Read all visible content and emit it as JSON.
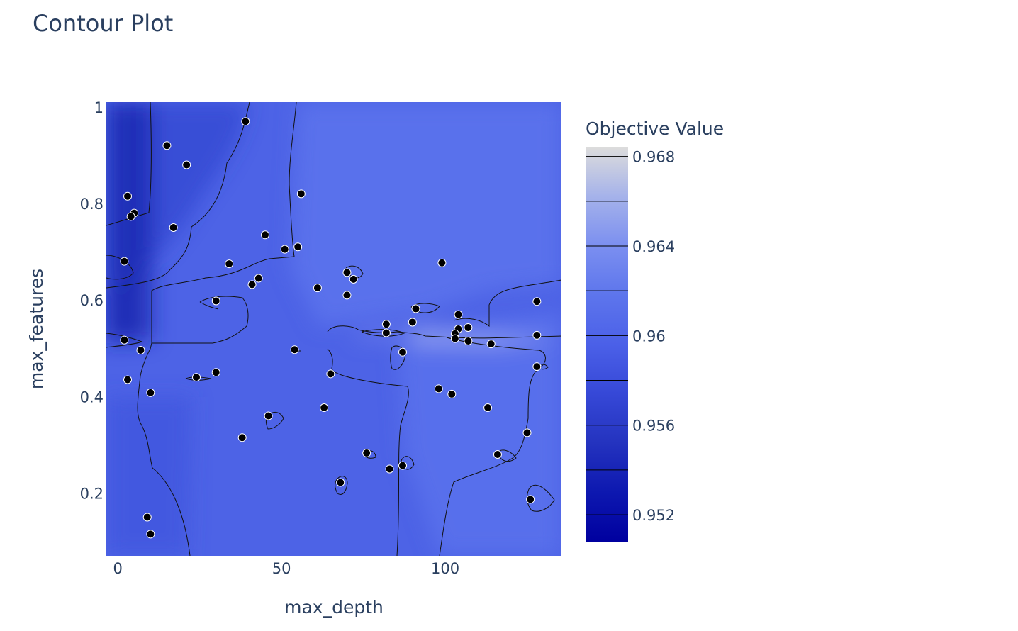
{
  "chart_data": {
    "type": "contour",
    "title": "Contour Plot",
    "xlabel": "max_depth",
    "ylabel": "max_features",
    "xlim": [
      -3.5,
      135.5
    ],
    "ylim": [
      0.07,
      1.01
    ],
    "x_ticks": [
      0,
      50,
      100
    ],
    "y_ticks": [
      0.2,
      0.4,
      0.6,
      0.8,
      1
    ],
    "colorbar": {
      "title": "Objective Value",
      "range": [
        0.9508,
        0.9684
      ],
      "ticks": [
        0.952,
        0.956,
        0.96,
        0.964,
        0.968
      ],
      "tick_labels": [
        "0.952",
        "0.956",
        "0.96",
        "0.964",
        "0.968"
      ],
      "contour_levels": [
        0.952,
        0.954,
        0.956,
        0.958,
        0.96,
        0.962,
        0.964,
        0.966,
        0.968
      ],
      "colorscale": [
        "#00009f",
        "#0d18b0",
        "#2433bf",
        "#3648d7",
        "#4b60e8",
        "#5d75ec",
        "#7b8ff0",
        "#a5b2ea",
        "#dcdcdc"
      ]
    },
    "points": [
      {
        "x": 39,
        "y": 0.97
      },
      {
        "x": 15,
        "y": 0.92
      },
      {
        "x": 21,
        "y": 0.88
      },
      {
        "x": 3,
        "y": 0.815
      },
      {
        "x": 56,
        "y": 0.82
      },
      {
        "x": 5,
        "y": 0.78
      },
      {
        "x": 4,
        "y": 0.773
      },
      {
        "x": 17,
        "y": 0.75
      },
      {
        "x": 45,
        "y": 0.735
      },
      {
        "x": 51,
        "y": 0.705
      },
      {
        "x": 55,
        "y": 0.71
      },
      {
        "x": 2,
        "y": 0.68
      },
      {
        "x": 34,
        "y": 0.675
      },
      {
        "x": 99,
        "y": 0.677
      },
      {
        "x": 70,
        "y": 0.657
      },
      {
        "x": 72,
        "y": 0.643
      },
      {
        "x": 43,
        "y": 0.645
      },
      {
        "x": 41,
        "y": 0.632
      },
      {
        "x": 61,
        "y": 0.625
      },
      {
        "x": 70,
        "y": 0.61
      },
      {
        "x": 30,
        "y": 0.598
      },
      {
        "x": 128,
        "y": 0.597
      },
      {
        "x": 91,
        "y": 0.582
      },
      {
        "x": 104,
        "y": 0.57
      },
      {
        "x": 90,
        "y": 0.554
      },
      {
        "x": 82,
        "y": 0.55
      },
      {
        "x": 107,
        "y": 0.543
      },
      {
        "x": 104,
        "y": 0.54
      },
      {
        "x": 82,
        "y": 0.532
      },
      {
        "x": 103,
        "y": 0.53
      },
      {
        "x": 128,
        "y": 0.527
      },
      {
        "x": 103,
        "y": 0.52
      },
      {
        "x": 2,
        "y": 0.517
      },
      {
        "x": 107,
        "y": 0.515
      },
      {
        "x": 114,
        "y": 0.509
      },
      {
        "x": 7,
        "y": 0.496
      },
      {
        "x": 54,
        "y": 0.497
      },
      {
        "x": 87,
        "y": 0.492
      },
      {
        "x": 128,
        "y": 0.462
      },
      {
        "x": 65,
        "y": 0.447
      },
      {
        "x": 30,
        "y": 0.45
      },
      {
        "x": 24,
        "y": 0.44
      },
      {
        "x": 3,
        "y": 0.435
      },
      {
        "x": 98,
        "y": 0.416
      },
      {
        "x": 10,
        "y": 0.408
      },
      {
        "x": 102,
        "y": 0.405
      },
      {
        "x": 63,
        "y": 0.377
      },
      {
        "x": 113,
        "y": 0.377
      },
      {
        "x": 46,
        "y": 0.36
      },
      {
        "x": 125,
        "y": 0.325
      },
      {
        "x": 38,
        "y": 0.315
      },
      {
        "x": 76,
        "y": 0.283
      },
      {
        "x": 116,
        "y": 0.28
      },
      {
        "x": 87,
        "y": 0.257
      },
      {
        "x": 83,
        "y": 0.25
      },
      {
        "x": 68,
        "y": 0.222
      },
      {
        "x": 126,
        "y": 0.187
      },
      {
        "x": 9,
        "y": 0.15
      },
      {
        "x": 10,
        "y": 0.115
      }
    ]
  }
}
